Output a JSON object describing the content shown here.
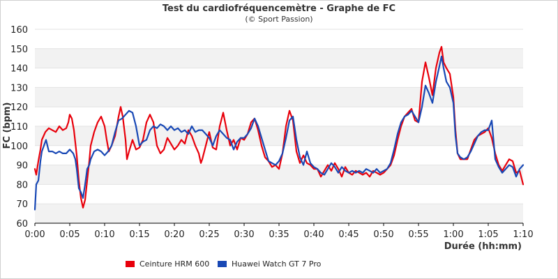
{
  "chart_data": {
    "type": "line",
    "title": "Test du cardiofréquencemètre - Graphe de FC",
    "subtitle": "(© Sport Passion)",
    "xlabel": "Durée (hh:mm)",
    "ylabel": "FC (bpm)",
    "x_unit": "minutes",
    "xlim": [
      0,
      70
    ],
    "ylim": [
      60,
      160
    ],
    "x_ticks": [
      {
        "value": 0,
        "label": "0:00"
      },
      {
        "value": 5,
        "label": "0:05"
      },
      {
        "value": 10,
        "label": "0:10"
      },
      {
        "value": 15,
        "label": "0:15"
      },
      {
        "value": 20,
        "label": "0:20"
      },
      {
        "value": 25,
        "label": "0:25"
      },
      {
        "value": 30,
        "label": "0:30"
      },
      {
        "value": 35,
        "label": "0:35"
      },
      {
        "value": 40,
        "label": "0:40"
      },
      {
        "value": 45,
        "label": "0:45"
      },
      {
        "value": 50,
        "label": "0:50"
      },
      {
        "value": 55,
        "label": "0:55"
      },
      {
        "value": 60,
        "label": "1:00"
      },
      {
        "value": 65,
        "label": "1:05"
      },
      {
        "value": 70,
        "label": "1:10"
      }
    ],
    "y_ticks": [
      60,
      70,
      80,
      90,
      100,
      110,
      120,
      130,
      140,
      150,
      160
    ],
    "grid": "alternating horizontal bands",
    "legend_position": "bottom-left",
    "series": [
      {
        "name": "Ceinture HRM 600",
        "color": "#e8000b",
        "points": [
          [
            0,
            88
          ],
          [
            0.2,
            85
          ],
          [
            0.5,
            92
          ],
          [
            0.8,
            98
          ],
          [
            1,
            103
          ],
          [
            1.5,
            107
          ],
          [
            2,
            109
          ],
          [
            2.5,
            108
          ],
          [
            3,
            107
          ],
          [
            3.5,
            110
          ],
          [
            4,
            108
          ],
          [
            4.5,
            109
          ],
          [
            4.8,
            112
          ],
          [
            5,
            116
          ],
          [
            5.3,
            114
          ],
          [
            5.6,
            108
          ],
          [
            6,
            95
          ],
          [
            6.3,
            82
          ],
          [
            6.6,
            73
          ],
          [
            6.9,
            68
          ],
          [
            7.2,
            72
          ],
          [
            7.5,
            82
          ],
          [
            7.8,
            92
          ],
          [
            8,
            100
          ],
          [
            8.5,
            107
          ],
          [
            9,
            112
          ],
          [
            9.5,
            115
          ],
          [
            10,
            110
          ],
          [
            10.3,
            103
          ],
          [
            10.6,
            97
          ],
          [
            11,
            100
          ],
          [
            11.5,
            105
          ],
          [
            12,
            115
          ],
          [
            12.3,
            120
          ],
          [
            12.6,
            115
          ],
          [
            13,
            103
          ],
          [
            13.2,
            93
          ],
          [
            13.5,
            97
          ],
          [
            14,
            103
          ],
          [
            14.5,
            98
          ],
          [
            15,
            99
          ],
          [
            15.5,
            103
          ],
          [
            16,
            112
          ],
          [
            16.5,
            116
          ],
          [
            17,
            112
          ],
          [
            17.5,
            100
          ],
          [
            18,
            96
          ],
          [
            18.5,
            98
          ],
          [
            19,
            104
          ],
          [
            19.5,
            101
          ],
          [
            20,
            98
          ],
          [
            20.5,
            100
          ],
          [
            21,
            103
          ],
          [
            21.5,
            101
          ],
          [
            22,
            108
          ],
          [
            22.5,
            105
          ],
          [
            23,
            100
          ],
          [
            23.5,
            96
          ],
          [
            23.8,
            91
          ],
          [
            24,
            93
          ],
          [
            24.5,
            100
          ],
          [
            25,
            107
          ],
          [
            25.5,
            99
          ],
          [
            26,
            98
          ],
          [
            26.5,
            110
          ],
          [
            27,
            117
          ],
          [
            27.5,
            108
          ],
          [
            28,
            100
          ],
          [
            28.5,
            103
          ],
          [
            29,
            98
          ],
          [
            29.5,
            104
          ],
          [
            30,
            103
          ],
          [
            30.5,
            106
          ],
          [
            31,
            112
          ],
          [
            31.5,
            114
          ],
          [
            32,
            108
          ],
          [
            32.5,
            100
          ],
          [
            33,
            94
          ],
          [
            33.5,
            92
          ],
          [
            34,
            89
          ],
          [
            34.5,
            90
          ],
          [
            35,
            88
          ],
          [
            35.5,
            96
          ],
          [
            36,
            110
          ],
          [
            36.5,
            118
          ],
          [
            37,
            113
          ],
          [
            37.5,
            97
          ],
          [
            38,
            91
          ],
          [
            38.5,
            95
          ],
          [
            39,
            91
          ],
          [
            39.5,
            90
          ],
          [
            40,
            88
          ],
          [
            40.5,
            88
          ],
          [
            41,
            84
          ],
          [
            41.5,
            87
          ],
          [
            42,
            90
          ],
          [
            42.5,
            87
          ],
          [
            43,
            91
          ],
          [
            43.5,
            88
          ],
          [
            44,
            84
          ],
          [
            44.5,
            89
          ],
          [
            45,
            86
          ],
          [
            45.5,
            85
          ],
          [
            46,
            87
          ],
          [
            46.5,
            86
          ],
          [
            47,
            85
          ],
          [
            47.5,
            86
          ],
          [
            48,
            84
          ],
          [
            48.5,
            87
          ],
          [
            49,
            86
          ],
          [
            49.5,
            85
          ],
          [
            50,
            86
          ],
          [
            50.5,
            88
          ],
          [
            51,
            90
          ],
          [
            51.5,
            95
          ],
          [
            52,
            103
          ],
          [
            52.5,
            110
          ],
          [
            53,
            115
          ],
          [
            53.5,
            117
          ],
          [
            54,
            119
          ],
          [
            54.5,
            113
          ],
          [
            55,
            112
          ],
          [
            55.5,
            133
          ],
          [
            56,
            143
          ],
          [
            56.5,
            135
          ],
          [
            57,
            126
          ],
          [
            57.5,
            140
          ],
          [
            58,
            148
          ],
          [
            58.3,
            151
          ],
          [
            58.6,
            143
          ],
          [
            59,
            140
          ],
          [
            59.5,
            137
          ],
          [
            60,
            125
          ],
          [
            60.3,
            108
          ],
          [
            60.6,
            96
          ],
          [
            61,
            93
          ],
          [
            61.5,
            93
          ],
          [
            62,
            93
          ],
          [
            62.5,
            98
          ],
          [
            63,
            103
          ],
          [
            63.5,
            105
          ],
          [
            64,
            106
          ],
          [
            64.5,
            107
          ],
          [
            65,
            109
          ],
          [
            65.5,
            104
          ],
          [
            66,
            96
          ],
          [
            66.5,
            90
          ],
          [
            67,
            87
          ],
          [
            67.5,
            90
          ],
          [
            68,
            93
          ],
          [
            68.5,
            92
          ],
          [
            69,
            86
          ],
          [
            69.5,
            87
          ],
          [
            70,
            80
          ]
        ]
      },
      {
        "name": "Huawei Watch GT 7 Pro",
        "color": "#1848b5",
        "points": [
          [
            0,
            67
          ],
          [
            0.2,
            80
          ],
          [
            0.5,
            82
          ],
          [
            0.8,
            92
          ],
          [
            1,
            97
          ],
          [
            1.3,
            100
          ],
          [
            1.6,
            103
          ],
          [
            2,
            97
          ],
          [
            2.5,
            97
          ],
          [
            3,
            96
          ],
          [
            3.5,
            97
          ],
          [
            4,
            96
          ],
          [
            4.5,
            96
          ],
          [
            5,
            98
          ],
          [
            5.5,
            96
          ],
          [
            5.8,
            93
          ],
          [
            6,
            88
          ],
          [
            6.3,
            78
          ],
          [
            6.6,
            76
          ],
          [
            6.9,
            73
          ],
          [
            7.2,
            80
          ],
          [
            7.5,
            88
          ],
          [
            7.8,
            90
          ],
          [
            8,
            93
          ],
          [
            8.5,
            97
          ],
          [
            9,
            98
          ],
          [
            9.5,
            97
          ],
          [
            10,
            95
          ],
          [
            10.5,
            97
          ],
          [
            11,
            100
          ],
          [
            11.5,
            107
          ],
          [
            12,
            113
          ],
          [
            12.5,
            114
          ],
          [
            13,
            116
          ],
          [
            13.5,
            118
          ],
          [
            14,
            117
          ],
          [
            14.5,
            110
          ],
          [
            15,
            100
          ],
          [
            15.5,
            102
          ],
          [
            16,
            103
          ],
          [
            16.5,
            108
          ],
          [
            17,
            110
          ],
          [
            17.5,
            109
          ],
          [
            18,
            111
          ],
          [
            18.5,
            110
          ],
          [
            19,
            108
          ],
          [
            19.5,
            110
          ],
          [
            20,
            108
          ],
          [
            20.5,
            109
          ],
          [
            21,
            107
          ],
          [
            21.5,
            108
          ],
          [
            22,
            106
          ],
          [
            22.5,
            110
          ],
          [
            23,
            107
          ],
          [
            23.5,
            108
          ],
          [
            24,
            108
          ],
          [
            24.5,
            106
          ],
          [
            25,
            104
          ],
          [
            25.5,
            100
          ],
          [
            26,
            105
          ],
          [
            26.5,
            108
          ],
          [
            27,
            106
          ],
          [
            27.5,
            104
          ],
          [
            28,
            103
          ],
          [
            28.5,
            98
          ],
          [
            29,
            102
          ],
          [
            29.5,
            104
          ],
          [
            30,
            104
          ],
          [
            30.5,
            106
          ],
          [
            31,
            109
          ],
          [
            31.5,
            114
          ],
          [
            32,
            110
          ],
          [
            32.5,
            104
          ],
          [
            33,
            98
          ],
          [
            33.5,
            92
          ],
          [
            34,
            91
          ],
          [
            34.5,
            90
          ],
          [
            35,
            92
          ],
          [
            35.5,
            96
          ],
          [
            36,
            104
          ],
          [
            36.5,
            113
          ],
          [
            37,
            115
          ],
          [
            37.5,
            103
          ],
          [
            38,
            94
          ],
          [
            38.5,
            90
          ],
          [
            39,
            97
          ],
          [
            39.5,
            91
          ],
          [
            40,
            89
          ],
          [
            40.5,
            88
          ],
          [
            41,
            86
          ],
          [
            41.5,
            85
          ],
          [
            42,
            88
          ],
          [
            42.5,
            91
          ],
          [
            43,
            89
          ],
          [
            43.5,
            86
          ],
          [
            44,
            89
          ],
          [
            44.5,
            87
          ],
          [
            45,
            86
          ],
          [
            45.5,
            87
          ],
          [
            46,
            86
          ],
          [
            46.5,
            87
          ],
          [
            47,
            86
          ],
          [
            47.5,
            88
          ],
          [
            48,
            87
          ],
          [
            48.5,
            86
          ],
          [
            49,
            88
          ],
          [
            49.5,
            86
          ],
          [
            50,
            87
          ],
          [
            50.5,
            88
          ],
          [
            51,
            91
          ],
          [
            51.5,
            98
          ],
          [
            52,
            106
          ],
          [
            52.5,
            112
          ],
          [
            53,
            115
          ],
          [
            53.5,
            116
          ],
          [
            54,
            118
          ],
          [
            54.5,
            115
          ],
          [
            55,
            112
          ],
          [
            55.5,
            120
          ],
          [
            56,
            131
          ],
          [
            56.5,
            127
          ],
          [
            57,
            122
          ],
          [
            57.5,
            133
          ],
          [
            58,
            141
          ],
          [
            58.3,
            146
          ],
          [
            58.6,
            140
          ],
          [
            59,
            133
          ],
          [
            59.5,
            130
          ],
          [
            60,
            122
          ],
          [
            60.3,
            105
          ],
          [
            60.6,
            96
          ],
          [
            61,
            94
          ],
          [
            61.5,
            93
          ],
          [
            62,
            94
          ],
          [
            62.5,
            97
          ],
          [
            63,
            101
          ],
          [
            63.5,
            105
          ],
          [
            64,
            107
          ],
          [
            64.5,
            108
          ],
          [
            65,
            108
          ],
          [
            65.5,
            113
          ],
          [
            66,
            93
          ],
          [
            66.5,
            89
          ],
          [
            67,
            86
          ],
          [
            67.5,
            88
          ],
          [
            68,
            90
          ],
          [
            68.5,
            89
          ],
          [
            69,
            84
          ],
          [
            69.5,
            88
          ],
          [
            70,
            90
          ]
        ]
      }
    ]
  }
}
